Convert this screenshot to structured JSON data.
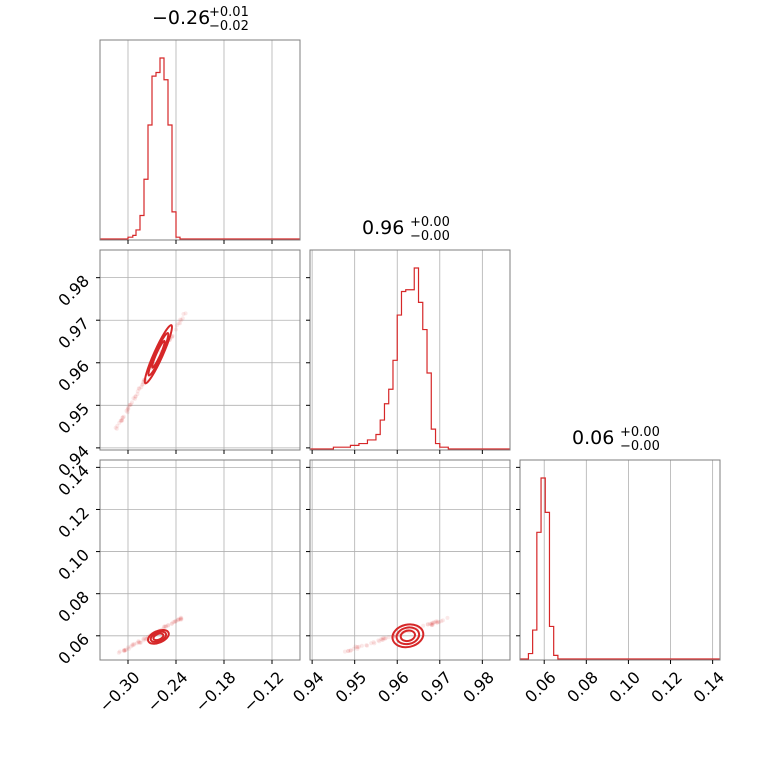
{
  "chart_data": {
    "type": "corner",
    "color": "#d62728",
    "grid": true,
    "parameters": [
      {
        "range": [
          -0.335,
          -0.085
        ],
        "ticks": [
          -0.3,
          -0.24,
          -0.18,
          -0.12
        ],
        "tick_labels": [
          "−0.30",
          "−0.24",
          "−0.18",
          "−0.12"
        ]
      },
      {
        "range": [
          0.9395,
          0.9865
        ],
        "ticks": [
          0.94,
          0.95,
          0.96,
          0.97,
          0.98
        ],
        "tick_labels": [
          "0.94",
          "0.95",
          "0.96",
          "0.97",
          "0.98"
        ]
      },
      {
        "range": [
          0.0485,
          0.1435
        ],
        "ticks": [
          0.06,
          0.08,
          0.1,
          0.12,
          0.14
        ],
        "tick_labels": [
          "0.06",
          "0.08",
          "0.10",
          "0.12",
          "0.14"
        ]
      }
    ],
    "titles": [
      {
        "main": "−0.26",
        "plus": "+0.01",
        "minus": "−0.02"
      },
      {
        "main": "0.96",
        "plus": "+0.00",
        "minus": "−0.00"
      },
      {
        "main": "0.06",
        "plus": "+0.00",
        "minus": "−0.00"
      }
    ],
    "histograms": [
      {
        "edges": [
          -0.3,
          -0.294,
          -0.29,
          -0.285,
          -0.28,
          -0.275,
          -0.27,
          -0.265,
          -0.26,
          -0.255,
          -0.25,
          -0.245,
          -0.24,
          -0.235
        ],
        "counts": [
          0.01,
          0.02,
          0.05,
          0.13,
          0.33,
          0.63,
          0.9,
          0.92,
          1.0,
          0.88,
          0.63,
          0.15,
          0.01
        ]
      },
      {
        "edges": [
          0.945,
          0.947,
          0.949,
          0.951,
          0.953,
          0.955,
          0.956,
          0.957,
          0.958,
          0.959,
          0.96,
          0.961,
          0.962,
          0.963,
          0.964,
          0.965,
          0.966,
          0.967,
          0.968,
          0.969,
          0.97,
          0.972
        ],
        "counts": [
          0.01,
          0.01,
          0.02,
          0.03,
          0.05,
          0.08,
          0.16,
          0.25,
          0.33,
          0.49,
          0.74,
          0.87,
          0.88,
          0.88,
          1.0,
          0.81,
          0.66,
          0.42,
          0.11,
          0.03,
          0.01
        ]
      },
      {
        "edges": [
          0.0525,
          0.0545,
          0.0565,
          0.0585,
          0.0605,
          0.0625,
          0.0645,
          0.0665
        ],
        "counts": [
          0.03,
          0.16,
          0.7,
          1.0,
          0.81,
          0.18,
          0.02
        ]
      }
    ],
    "contours_2d": [
      {
        "xi": 0,
        "yi": 1,
        "center": [
          -0.262,
          0.962
        ],
        "axis": [
          0.025,
          0.0105
        ],
        "spread": [
          0.0035,
          0.00045
        ],
        "levels": [
          0.6,
          0.95,
          1.3
        ]
      },
      {
        "xi": 0,
        "yi": 2,
        "center": [
          -0.262,
          0.0595
        ],
        "axis": [
          0.022,
          0.0035
        ],
        "spread": [
          0.006,
          0.0008
        ],
        "levels": [
          0.55,
          0.85,
          1.15
        ]
      },
      {
        "xi": 1,
        "yi": 2,
        "center": [
          0.9625,
          0.06
        ],
        "axis": [
          0.0055,
          0.0025
        ],
        "spread": [
          0.002,
          0.0006
        ],
        "levels": [
          0.6,
          0.95,
          1.3
        ]
      }
    ],
    "clouds_2d": [
      {
        "xi": 0,
        "yi": 1,
        "from": [
          -0.315,
          0.9445
        ],
        "to": [
          -0.228,
          0.972
        ],
        "n": 60
      },
      {
        "xi": 0,
        "yi": 2,
        "from": [
          -0.312,
          0.0515
        ],
        "to": [
          -0.232,
          0.0685
        ],
        "n": 60
      },
      {
        "xi": 1,
        "yi": 2,
        "from": [
          0.9475,
          0.0525
        ],
        "to": [
          0.9725,
          0.0685
        ],
        "n": 60
      }
    ]
  }
}
